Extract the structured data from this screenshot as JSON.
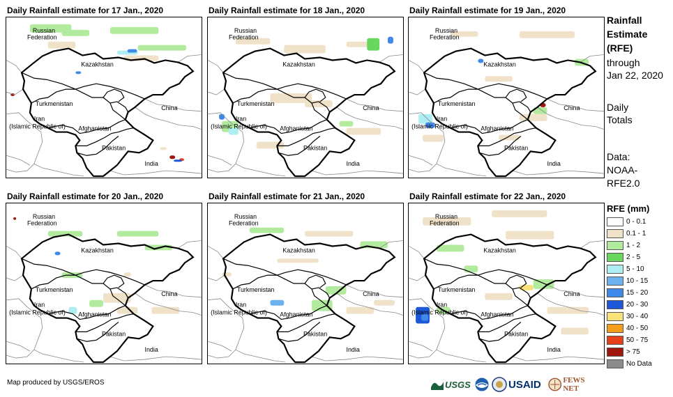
{
  "panels": [
    {
      "title": "Daily Rainfall estimate for 17 Jan., 2020"
    },
    {
      "title": "Daily Rainfall estimate for 18 Jan., 2020"
    },
    {
      "title": "Daily Rainfall estimate for 19 Jan., 2020"
    },
    {
      "title": "Daily Rainfall estimate for 20 Jan., 2020"
    },
    {
      "title": "Daily Rainfall estimate for 21 Jan., 2020"
    },
    {
      "title": "Daily Rainfall estimate for 22 Jan., 2020"
    }
  ],
  "map_labels": {
    "russia_1": "Russian",
    "russia_2": "Federation",
    "kazakhstan": "Kazakhstan",
    "turkmenistan": "Turkmenistan",
    "iran_1": "Iran",
    "iran_2": "(Islamic Republic of)",
    "afghanistan": "Afghanistan",
    "pakistan": "Pakistan",
    "china": "China",
    "india": "India"
  },
  "side_info": {
    "title_1": "Rainfall",
    "title_2": "Estimate",
    "title_3": "(RFE)",
    "through_1": "through",
    "through_2": "Jan 22, 2020",
    "totals_1": "Daily",
    "totals_2": "Totals",
    "data_1": "Data:",
    "data_2": "NOAA-",
    "data_3": "RFE2.0"
  },
  "legend": {
    "title": "RFE (mm)",
    "items": [
      {
        "label": "0 - 0.1",
        "color": "#ffffff"
      },
      {
        "label": "0.1 - 1",
        "color": "#efe2c8"
      },
      {
        "label": "1 - 2",
        "color": "#b3eb9e"
      },
      {
        "label": "2 - 5",
        "color": "#67d85d"
      },
      {
        "label": "5 - 10",
        "color": "#aeeef3"
      },
      {
        "label": "10 - 15",
        "color": "#6cb2ef"
      },
      {
        "label": "15 - 20",
        "color": "#3f89eb"
      },
      {
        "label": "20 - 30",
        "color": "#1d58d9"
      },
      {
        "label": "30 - 40",
        "color": "#f9e27b"
      },
      {
        "label": "40 - 50",
        "color": "#f49c1b"
      },
      {
        "label": "50 - 75",
        "color": "#e8401a"
      },
      {
        "label": "> 75",
        "color": "#a1150f"
      },
      {
        "label": "No Data",
        "color": "#8c8c8c"
      }
    ]
  },
  "credit": "Map produced by USGS/EROS",
  "logos": {
    "usgs": "USGS",
    "usaid": "USAID",
    "fewsnet": "FEWS NET"
  }
}
